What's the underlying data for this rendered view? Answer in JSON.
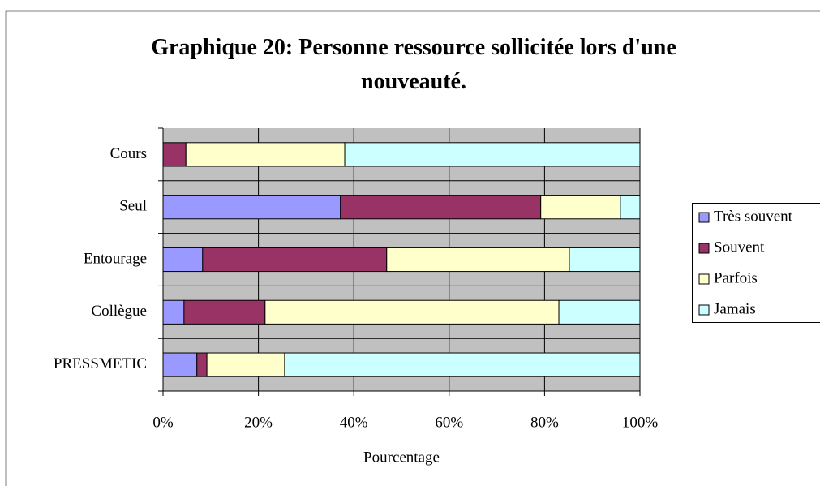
{
  "chart_data": {
    "type": "stacked_bar_horizontal",
    "title": "Graphique 20: Personne ressource sollicitée lors d'une nouveauté.",
    "categories": [
      "Cours",
      "Seul",
      "Entourage",
      "Collègue",
      "PRESSMETIC"
    ],
    "series": [
      {
        "name": "Très souvent",
        "color": "#9999ff",
        "values": [
          0,
          37.2,
          8.3,
          4.4,
          7.1
        ]
      },
      {
        "name": "Souvent",
        "color": "#993366",
        "values": [
          4.8,
          42.0,
          38.6,
          17.0,
          2.1
        ]
      },
      {
        "name": "Parfois",
        "color": "#ffffcc",
        "values": [
          33.3,
          16.7,
          38.3,
          61.6,
          16.3
        ]
      },
      {
        "name": "Jamais",
        "color": "#ccffff",
        "values": [
          61.9,
          4.1,
          14.8,
          17.0,
          74.5
        ]
      }
    ],
    "xlabel": "Pourcentage",
    "xlim": [
      0,
      100
    ],
    "xticks": [
      {
        "value": 0,
        "label": "0%"
      },
      {
        "value": 20,
        "label": "20%"
      },
      {
        "value": 40,
        "label": "40%"
      },
      {
        "value": 60,
        "label": "60%"
      },
      {
        "value": 80,
        "label": "80%"
      },
      {
        "value": 100,
        "label": "100%"
      }
    ],
    "grid": true,
    "legend": "right"
  }
}
